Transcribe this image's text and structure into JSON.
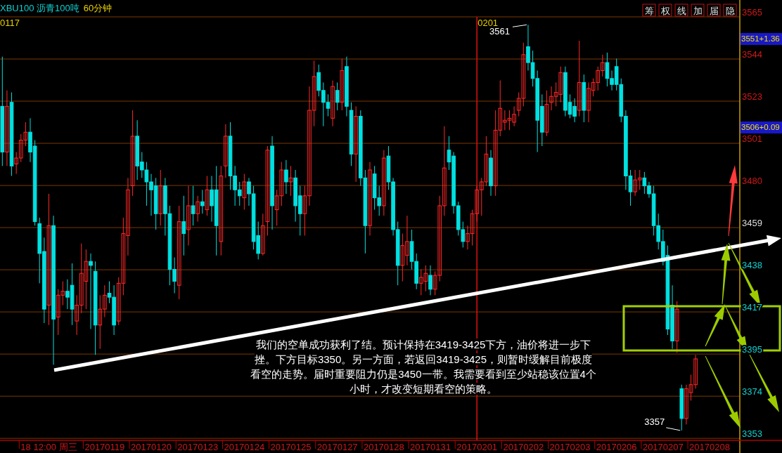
{
  "chart_data": {
    "type": "candlestick",
    "title": "XBU100 沥青100吨",
    "subtitle": "60分钟",
    "categories": [
      null,
      null,
      null,
      null,
      null,
      null,
      null,
      null,
      null,
      null,
      "18 12:00 周三",
      null,
      null,
      null,
      null,
      null,
      null,
      null,
      null,
      null,
      null,
      null,
      "20170119",
      null,
      null,
      null,
      null,
      null,
      null,
      null,
      null,
      null,
      "20170120",
      null,
      null,
      null,
      null,
      null,
      null,
      null,
      null,
      null,
      "20170123",
      null,
      null,
      null,
      null,
      null,
      null,
      null,
      null,
      null,
      "20170124",
      null,
      null,
      null,
      null,
      null,
      null,
      null,
      null,
      null,
      "20170125",
      null,
      null,
      null,
      null,
      null,
      null,
      null,
      null,
      null,
      "20170127",
      null,
      null,
      null,
      null,
      null,
      null,
      null,
      null,
      null,
      "20170128",
      null,
      null,
      null,
      null,
      null,
      null,
      null,
      null,
      null,
      "20170131",
      null,
      null,
      null,
      null,
      null,
      null,
      null,
      null,
      null,
      "20170201",
      null,
      null,
      null,
      null,
      null,
      null,
      null,
      null,
      null,
      "20170202",
      null,
      null,
      null,
      null,
      null,
      null,
      null,
      null,
      null,
      "20170203",
      null,
      null,
      null,
      null,
      null,
      null,
      null,
      null,
      null,
      "20170206",
      null,
      null,
      null,
      null,
      null,
      null,
      null,
      null,
      null,
      "20170207",
      null,
      null,
      null,
      null,
      null,
      null,
      null,
      null,
      null,
      "20170208",
      null,
      null,
      null,
      null,
      null,
      null
    ],
    "ohlc": [
      [
        3520,
        3545,
        3490,
        3497
      ],
      [
        3497,
        3528,
        3490,
        3520
      ],
      [
        3522,
        3527,
        3485,
        3490
      ],
      [
        3491,
        3497,
        3486,
        3494
      ],
      [
        3494,
        3506,
        3492,
        3503
      ],
      [
        3503,
        3512,
        3500,
        3507
      ],
      [
        3507,
        3514,
        3492,
        3497
      ],
      [
        3500,
        3503,
        3460,
        3462
      ],
      [
        3461,
        3464,
        3431,
        3446
      ],
      [
        3447,
        3454,
        3411,
        3418
      ],
      [
        3420,
        3476,
        3410,
        3460
      ],
      [
        3460,
        3465,
        3390,
        3413
      ],
      [
        3414,
        3428,
        3405,
        3425
      ],
      [
        3425,
        3432,
        3420,
        3427
      ],
      [
        3427,
        3433,
        3418,
        3424
      ],
      [
        3430,
        3441,
        3410,
        3418
      ],
      [
        3412,
        3425,
        3405,
        3420
      ],
      [
        3420,
        3451,
        3416,
        3436
      ],
      [
        3432,
        3448,
        3418,
        3442
      ],
      [
        3442,
        3446,
        3408,
        3440
      ],
      [
        3437,
        3442,
        3395,
        3410
      ],
      [
        3410,
        3425,
        3398,
        3418
      ],
      [
        3418,
        3430,
        3414,
        3425
      ],
      [
        3426,
        3432,
        3421,
        3424
      ],
      [
        3424,
        3430,
        3405,
        3410
      ],
      [
        3412,
        3434,
        3410,
        3431
      ],
      [
        3431,
        3464,
        3425,
        3456
      ],
      [
        3455,
        3484,
        3445,
        3478
      ],
      [
        3480,
        3518,
        3475,
        3505
      ],
      [
        3505,
        3513,
        3483,
        3490
      ],
      [
        3492,
        3497,
        3484,
        3488
      ],
      [
        3488,
        3492,
        3470,
        3482
      ],
      [
        3482,
        3486,
        3465,
        3478
      ],
      [
        3480,
        3484,
        3458,
        3466
      ],
      [
        3466,
        3488,
        3460,
        3480
      ],
      [
        3480,
        3484,
        3455,
        3466
      ],
      [
        3466,
        3470,
        3430,
        3438
      ],
      [
        3438,
        3444,
        3426,
        3432
      ],
      [
        3430,
        3470,
        3423,
        3462
      ],
      [
        3462,
        3475,
        3445,
        3456
      ],
      [
        3458,
        3480,
        3450,
        3470
      ],
      [
        3470,
        3480,
        3460,
        3466
      ],
      [
        3466,
        3475,
        3462,
        3472
      ],
      [
        3472,
        3478,
        3466,
        3470
      ],
      [
        3468,
        3485,
        3465,
        3478
      ],
      [
        3478,
        3485,
        3462,
        3470
      ],
      [
        3478,
        3490,
        3445,
        3460
      ],
      [
        3452,
        3490,
        3445,
        3485
      ],
      [
        3490,
        3511,
        3484,
        3505
      ],
      [
        3505,
        3512,
        3478,
        3485
      ],
      [
        3485,
        3490,
        3470,
        3478
      ],
      [
        3478,
        3482,
        3470,
        3475
      ],
      [
        3474,
        3486,
        3468,
        3482
      ],
      [
        3482,
        3484,
        3470,
        3476
      ],
      [
        3476,
        3480,
        3448,
        3452
      ],
      [
        3455,
        3462,
        3443,
        3446
      ],
      [
        3446,
        3466,
        3445,
        3460
      ],
      [
        3462,
        3500,
        3455,
        3498
      ],
      [
        3500,
        3505,
        3458,
        3470
      ],
      [
        3468,
        3478,
        3460,
        3475
      ],
      [
        3475,
        3492,
        3470,
        3488
      ],
      [
        3488,
        3493,
        3476,
        3482
      ],
      [
        3482,
        3490,
        3475,
        3484
      ],
      [
        3484,
        3488,
        3462,
        3470
      ],
      [
        3475,
        3480,
        3455,
        3466
      ],
      [
        3466,
        3480,
        3455,
        3475
      ],
      [
        3475,
        3530,
        3470,
        3518
      ],
      [
        3518,
        3543,
        3510,
        3535
      ],
      [
        3537,
        3541,
        3525,
        3528
      ],
      [
        3528,
        3532,
        3510,
        3522
      ],
      [
        3522,
        3526,
        3515,
        3519
      ],
      [
        3514,
        3533,
        3510,
        3530
      ],
      [
        3528,
        3532,
        3518,
        3522
      ],
      [
        3522,
        3544,
        3518,
        3538
      ],
      [
        3540,
        3545,
        3515,
        3520
      ],
      [
        3518,
        3522,
        3490,
        3496
      ],
      [
        3496,
        3520,
        3482,
        3515
      ],
      [
        3515,
        3518,
        3480,
        3484
      ],
      [
        3484,
        3488,
        3446,
        3460
      ],
      [
        3460,
        3492,
        3455,
        3488
      ],
      [
        3486,
        3490,
        3468,
        3474
      ],
      [
        3474,
        3480,
        3465,
        3470
      ],
      [
        3470,
        3498,
        3465,
        3494
      ],
      [
        3495,
        3500,
        3478,
        3482
      ],
      [
        3482,
        3484,
        3455,
        3458
      ],
      [
        3458,
        3462,
        3430,
        3440
      ],
      [
        3440,
        3456,
        3432,
        3450
      ],
      [
        3445,
        3465,
        3440,
        3452
      ],
      [
        3452,
        3458,
        3438,
        3442
      ],
      [
        3442,
        3446,
        3428,
        3431
      ],
      [
        3431,
        3438,
        3425,
        3434
      ],
      [
        3432,
        3440,
        3427,
        3436
      ],
      [
        3435,
        3440,
        3425,
        3428
      ],
      [
        3428,
        3437,
        3425,
        3435
      ],
      [
        3435,
        3475,
        3432,
        3470
      ],
      [
        3470,
        3510,
        3465,
        3489
      ],
      [
        3498,
        3505,
        3488,
        3492
      ],
      [
        3495,
        3497,
        3466,
        3470
      ],
      [
        3470,
        3472,
        3455,
        3458
      ],
      [
        3458,
        3462,
        3449,
        3452
      ],
      [
        3452,
        3460,
        3448,
        3456
      ],
      [
        3456,
        3468,
        3450,
        3466
      ],
      [
        3466,
        3480,
        3462,
        3478
      ],
      [
        3478,
        3484,
        3465,
        3482
      ],
      [
        3482,
        3505,
        3480,
        3496
      ],
      [
        3494,
        3498,
        3475,
        3480
      ],
      [
        3480,
        3518,
        3475,
        3508
      ],
      [
        3508,
        3533,
        3505,
        3519
      ],
      [
        3512,
        3518,
        3508,
        3513
      ],
      [
        3513,
        3518,
        3508,
        3514
      ],
      [
        3512,
        3520,
        3510,
        3516
      ],
      [
        3518,
        3527,
        3515,
        3524
      ],
      [
        3524,
        3552,
        3520,
        3546
      ],
      [
        3550,
        3561,
        3538,
        3542
      ],
      [
        3542,
        3548,
        3530,
        3534
      ],
      [
        3534,
        3538,
        3497,
        3513
      ],
      [
        3520,
        3526,
        3500,
        3507
      ],
      [
        3507,
        3528,
        3505,
        3521
      ],
      [
        3522,
        3530,
        3518,
        3525
      ],
      [
        3525,
        3532,
        3520,
        3527
      ],
      [
        3526,
        3540,
        3522,
        3537
      ],
      [
        3537,
        3540,
        3515,
        3518
      ],
      [
        3522,
        3526,
        3514,
        3516
      ],
      [
        3520,
        3524,
        3512,
        3515
      ],
      [
        3518,
        3553,
        3515,
        3532
      ],
      [
        3532,
        3536,
        3512,
        3518
      ],
      [
        3518,
        3532,
        3512,
        3529
      ],
      [
        3528,
        3534,
        3525,
        3532
      ],
      [
        3532,
        3540,
        3528,
        3538
      ],
      [
        3538,
        3546,
        3535,
        3542
      ],
      [
        3542,
        3547,
        3530,
        3534
      ],
      [
        3534,
        3538,
        3528,
        3531
      ],
      [
        3540,
        3544,
        3528,
        3531
      ],
      [
        3531,
        3534,
        3512,
        3515
      ],
      [
        3515,
        3518,
        3478,
        3485
      ],
      [
        3485,
        3488,
        3470,
        3477
      ],
      [
        3477,
        3488,
        3475,
        3483
      ],
      [
        3483,
        3488,
        3478,
        3484
      ],
      [
        3484,
        3487,
        3476,
        3480
      ],
      [
        3480,
        3482,
        3474,
        3476
      ],
      [
        3476,
        3480,
        3455,
        3460
      ],
      [
        3460,
        3466,
        3448,
        3452
      ],
      [
        3452,
        3458,
        3440,
        3442
      ],
      [
        3445,
        3450,
        3405,
        3408
      ],
      [
        3420,
        3430,
        3398,
        3402
      ],
      [
        3402,
        3422,
        3396,
        3418
      ],
      [
        3378,
        3380,
        3357,
        3363
      ],
      [
        3363,
        3380,
        3360,
        3378
      ],
      [
        3376,
        3385,
        3372,
        3380
      ],
      [
        3380,
        3395,
        3378,
        3393
      ],
      null,
      null,
      null,
      null,
      null,
      null,
      null,
      null,
      null
    ],
    "colors": [
      "#00e0e0",
      "#ff2828",
      "#00e0e0",
      "#ff2828",
      "#ff2828",
      "#ff2828",
      "#00e0e0",
      "#00e0e0",
      "#00e0e0",
      "#00e0e0",
      "#ff2828",
      "#00e0e0",
      "#ff2828",
      "#ff2828",
      "#00e0e0",
      "#00e0e0",
      "#ff2828",
      "#ff2828",
      "#ff2828",
      "#00e0e0",
      "#00e0e0",
      "#ff2828",
      "#ff2828",
      "#00e0e0",
      "#00e0e0",
      "#ff2828",
      "#ff2828",
      "#ff2828",
      "#ff2828",
      "#00e0e0",
      "#00e0e0",
      "#00e0e0",
      "#00e0e0",
      "#00e0e0",
      "#ff2828",
      "#00e0e0",
      "#00e0e0",
      "#00e0e0",
      "#ff2828",
      "#00e0e0",
      "#ff2828",
      "#00e0e0",
      "#ff2828",
      "#00e0e0",
      "#ff2828",
      "#00e0e0",
      "#00e0e0",
      "#ff2828",
      "#ff2828",
      "#00e0e0",
      "#00e0e0",
      "#00e0e0",
      "#ff2828",
      "#00e0e0",
      "#00e0e0",
      "#00e0e0",
      "#ff2828",
      "#ff2828",
      "#00e0e0",
      "#ff2828",
      "#ff2828",
      "#00e0e0",
      "#ff2828",
      "#00e0e0",
      "#00e0e0",
      "#ff2828",
      "#ff2828",
      "#ff2828",
      "#00e0e0",
      "#00e0e0",
      "#00e0e0",
      "#ff2828",
      "#00e0e0",
      "#ff2828",
      "#00e0e0",
      "#00e0e0",
      "#ff2828",
      "#00e0e0",
      "#00e0e0",
      "#ff2828",
      "#00e0e0",
      "#00e0e0",
      "#ff2828",
      "#00e0e0",
      "#00e0e0",
      "#00e0e0",
      "#ff2828",
      "#ff2828",
      "#00e0e0",
      "#00e0e0",
      "#ff2828",
      "#ff2828",
      "#00e0e0",
      "#ff2828",
      "#ff2828",
      "#ff2828",
      "#00e0e0",
      "#00e0e0",
      "#00e0e0",
      "#00e0e0",
      "#ff2828",
      "#ff2828",
      "#ff2828",
      "#ff2828",
      "#ff2828",
      "#00e0e0",
      "#ff2828",
      "#ff2828",
      "#ff2828",
      "#ff2828",
      "#ff2828",
      "#ff2828",
      "#ff2828",
      "#00e0e0",
      "#00e0e0",
      "#00e0e0",
      "#00e0e0",
      "#ff2828",
      "#ff2828",
      "#ff2828",
      "#ff2828",
      "#00e0e0",
      "#00e0e0",
      "#00e0e0",
      "#ff2828",
      "#00e0e0",
      "#ff2828",
      "#ff2828",
      "#ff2828",
      "#ff2828",
      "#00e0e0",
      "#00e0e0",
      "#00e0e0",
      "#00e0e0",
      "#00e0e0",
      "#00e0e0",
      "#ff2828",
      "#ff2828",
      "#00e0e0",
      "#00e0e0",
      "#00e0e0",
      "#00e0e0",
      "#00e0e0",
      "#00e0e0",
      "#00e0e0",
      "#ff2828",
      "#00e0e0",
      "#ff2828",
      "#ff2828",
      "#ff2828",
      null,
      null,
      null,
      null,
      null,
      null,
      null,
      null,
      null
    ],
    "ylim": [
      3352,
      3565
    ],
    "yticks": [
      {
        "value": 3353,
        "label": "3353"
      },
      {
        "value": 3374.2,
        "label": "3374"
      },
      {
        "value": 3395.4,
        "label": "3395"
      },
      {
        "value": 3416.6,
        "label": "3417"
      },
      {
        "value": 3437.8,
        "label": "3438"
      },
      {
        "value": 3459,
        "label": "3459"
      },
      {
        "value": 3480.2,
        "label": "3480"
      },
      {
        "value": 3501.4,
        "label": "3501"
      },
      {
        "value": 3522.6,
        "label": "3523"
      },
      {
        "value": 3543.8,
        "label": "3544"
      },
      {
        "value": 3565,
        "label": "3565"
      }
    ],
    "grid": "y",
    "ref_lines": [
      {
        "axis": "x",
        "value": "20170201",
        "label": "0201",
        "color": "#e01010"
      }
    ],
    "annotations": [
      "我们的空单成功获利了结。预计保持在3419-3425下方，油价将进一步下挫。下方目标3350。另一方面，若返回3419-3425，则暂时缓解目前极度看空的走势。届时重要阻力仍是3450一带。我需要看到至少站稳该位置4个小时，才改变短期看空的策略。",
      "0117",
      "筹",
      "权",
      "线",
      "加",
      "届",
      "隐",
      "3561",
      "3357",
      "3551+1.36",
      "3506+0.09"
    ]
  }
}
